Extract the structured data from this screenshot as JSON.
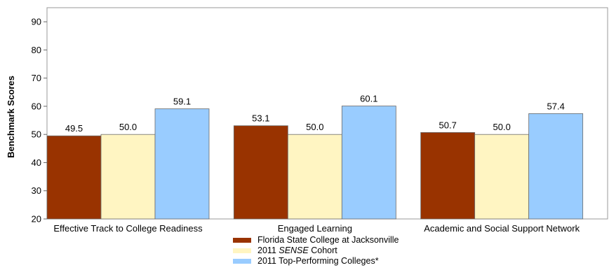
{
  "chart_data": {
    "type": "bar",
    "title": "",
    "xlabel": "",
    "ylabel": "Benchmark Scores",
    "ylim": [
      20,
      95
    ],
    "yticks": [
      20,
      30,
      40,
      50,
      60,
      70,
      80,
      90
    ],
    "grid": false,
    "legend_position": "bottom-center",
    "categories": [
      "Effective Track to College Readiness",
      "Engaged Learning",
      "Academic and Social Support Network"
    ],
    "series": [
      {
        "name": "Florida State College at Jacksonville",
        "color": "#993300",
        "values": [
          49.5,
          53.1,
          50.7
        ],
        "labels": [
          "49.5",
          "53.1",
          "50.7"
        ]
      },
      {
        "name": "2011 SENSE Cohort",
        "color": "#FFF5C2",
        "values": [
          50.0,
          50.0,
          50.0
        ],
        "labels": [
          "50.0",
          "50.0",
          "50.0"
        ]
      },
      {
        "name": "2011 Top-Performing Colleges*",
        "color": "#99CCFF",
        "values": [
          59.1,
          60.1,
          57.4
        ],
        "labels": [
          "59.1",
          "60.1",
          "57.4"
        ]
      }
    ],
    "legend": [
      {
        "prefix": "Florida State College at Jacksonville",
        "italic": "",
        "suffix": ""
      },
      {
        "prefix": "2011 ",
        "italic": "SENSE",
        "suffix": " Cohort"
      },
      {
        "prefix": "2011 Top-Performing Colleges*",
        "italic": "",
        "suffix": ""
      }
    ]
  }
}
